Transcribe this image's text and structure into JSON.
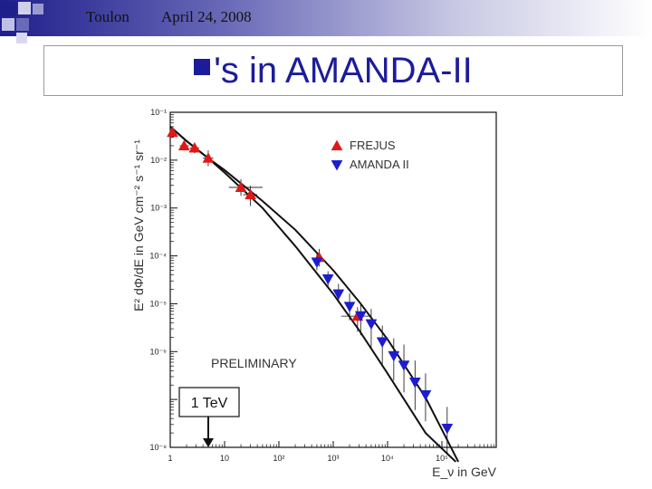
{
  "header": {
    "location": "Toulon",
    "date": "April 24, 2008"
  },
  "slide": {
    "title": "'s in AMANDA-II"
  },
  "chart_data": {
    "type": "scatter",
    "title": "",
    "xlabel": "E_ν in GeV",
    "ylabel": "E² dΦ/dE in GeV cm⁻² s⁻¹ sr⁻¹",
    "xscale": "log",
    "yscale": "log",
    "xlim": [
      1,
      1000000
    ],
    "ylim": [
      1e-08,
      0.1
    ],
    "x_ticks": [
      {
        "value": 1,
        "label": "1"
      },
      {
        "value": 10,
        "label": "10"
      },
      {
        "value": 100,
        "label": "10²"
      },
      {
        "value": 1000,
        "label": "10³"
      },
      {
        "value": 10000,
        "label": "10⁴"
      },
      {
        "value": 100000,
        "label": "10⁵"
      }
    ],
    "y_ticks": [
      {
        "value": 0.1,
        "label": "10⁻¹"
      },
      {
        "value": 0.01,
        "label": "10⁻²"
      },
      {
        "value": 0.001,
        "label": "10⁻³"
      },
      {
        "value": 0.0001,
        "label": "10⁻⁴"
      },
      {
        "value": 1e-05,
        "label": "10⁻⁵"
      },
      {
        "value": 1e-06,
        "label": "10⁻⁶"
      },
      {
        "value": 1e-08,
        "label": "10⁻⁸"
      }
    ],
    "legend_position": "top-right",
    "series": [
      {
        "name": "FREJUS",
        "marker": "triangle-up",
        "color": "#e01818",
        "points": [
          {
            "x": 1.1,
            "y": 0.038,
            "xlo": 1.0,
            "xhi": 1.25,
            "ylo": 0.03,
            "yhi": 0.046
          },
          {
            "x": 1.8,
            "y": 0.02,
            "xlo": 1.5,
            "xhi": 2.2,
            "ylo": 0.016,
            "yhi": 0.024
          },
          {
            "x": 2.8,
            "y": 0.018,
            "xlo": 2.3,
            "xhi": 3.4,
            "ylo": 0.014,
            "yhi": 0.022
          },
          {
            "x": 5.0,
            "y": 0.011,
            "xlo": 4.0,
            "xhi": 6.2,
            "ylo": 0.0075,
            "yhi": 0.016
          },
          {
            "x": 20,
            "y": 0.0027,
            "xlo": 12,
            "xhi": 50,
            "ylo": 0.0018,
            "yhi": 0.004
          },
          {
            "x": 30,
            "y": 0.0019,
            "xlo": 22,
            "xhi": 40,
            "ylo": 0.0011,
            "yhi": 0.0029
          },
          {
            "x": 550,
            "y": 9.3e-05,
            "xlo": 500,
            "xhi": 620,
            "ylo": 6e-05,
            "yhi": 0.00014
          },
          {
            "x": 2800,
            "y": 5.5e-06,
            "xlo": 1400,
            "xhi": 5000,
            "ylo": 2.6e-06,
            "yhi": 8.5e-06
          }
        ]
      },
      {
        "name": "AMANDA II",
        "marker": "triangle-down",
        "color": "#1c1cd0",
        "points": [
          {
            "x": 500,
            "y": 7.4e-05,
            "ylo": 5e-05,
            "yhi": 0.00011
          },
          {
            "x": 800,
            "y": 3.3e-05,
            "ylo": 2.2e-05,
            "yhi": 4.8e-05
          },
          {
            "x": 1250,
            "y": 1.6e-05,
            "ylo": 1.05e-05,
            "yhi": 2.6e-05
          },
          {
            "x": 2000,
            "y": 8.8e-06,
            "ylo": 4.5e-06,
            "yhi": 1.65e-05
          },
          {
            "x": 3200,
            "y": 5.6e-06,
            "ylo": 2.2e-06,
            "yhi": 1.05e-05
          },
          {
            "x": 5000,
            "y": 3.8e-06,
            "ylo": 1.2e-06,
            "yhi": 7.8e-06
          },
          {
            "x": 8000,
            "y": 1.6e-06,
            "ylo": 5e-07,
            "yhi": 3.5e-06
          },
          {
            "x": 13000,
            "y": 8.2e-07,
            "ylo": 2.5e-07,
            "yhi": 1.9e-06
          },
          {
            "x": 20000,
            "y": 5.2e-07,
            "ylo": 1.4e-07,
            "yhi": 1.4e-06
          },
          {
            "x": 32000,
            "y": 2.3e-07,
            "ylo": 6e-08,
            "yhi": 6.5e-07
          },
          {
            "x": 50000,
            "y": 1.25e-07,
            "ylo": 3.5e-08,
            "yhi": 3.5e-07
          },
          {
            "x": 125000,
            "y": 2.5e-08,
            "ylo": 7e-09,
            "yhi": 7e-08
          }
        ]
      }
    ],
    "curves": [
      {
        "x": [
          1,
          2,
          5,
          10,
          50,
          200,
          1000,
          3000,
          10000,
          50000,
          200000
        ],
        "y": [
          0.05,
          0.025,
          0.011,
          0.0062,
          0.0014,
          0.00035,
          5e-05,
          1.1e-05,
          1.8e-06,
          1.1e-07,
          5e-09
        ]
      },
      {
        "x": [
          1,
          2,
          5,
          10,
          50,
          200,
          1000,
          3000,
          10000,
          50000,
          180000
        ],
        "y": [
          0.05,
          0.025,
          0.011,
          0.0055,
          0.001,
          0.00016,
          1.6e-05,
          2.8e-06,
          3.5e-07,
          2e-08,
          5e-09
        ]
      }
    ],
    "annotations": {
      "preliminary": "PRELIMINARY",
      "tev_label": "1 TeV"
    }
  }
}
